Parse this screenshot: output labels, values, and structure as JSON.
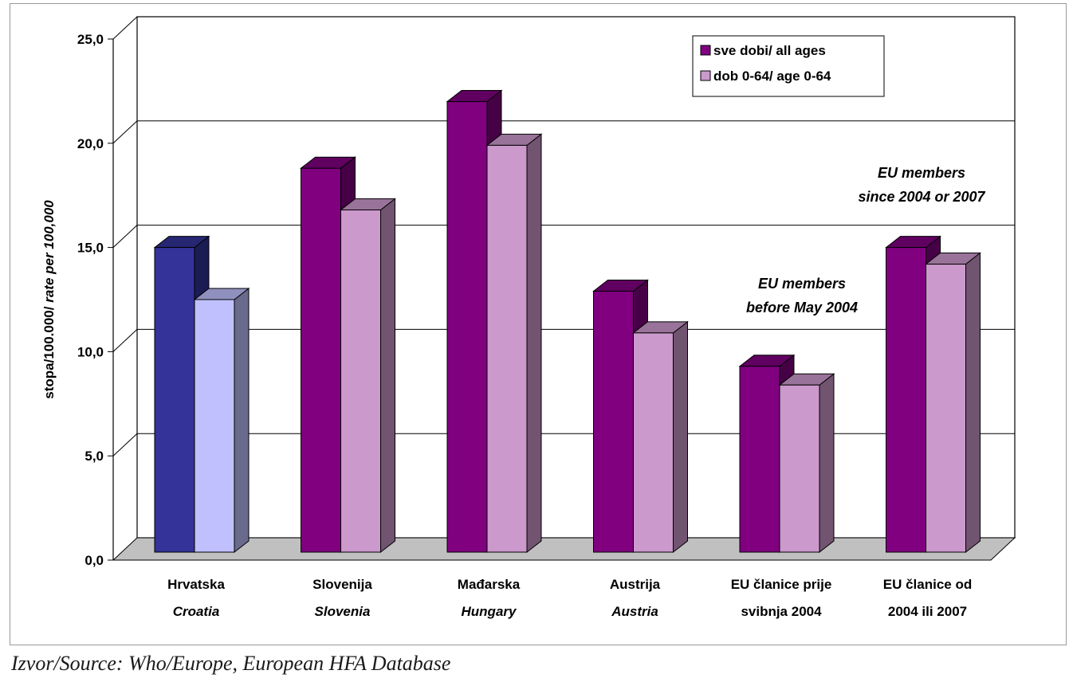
{
  "chart_data": {
    "type": "bar",
    "ylabel_main": "stopa/100.000/",
    "ylabel_italic": "rate per 100,000",
    "ylim": [
      0,
      25
    ],
    "yticks": [
      "0,0",
      "5,0",
      "10,0",
      "15,0",
      "20,0",
      "25,0"
    ],
    "grid": true,
    "legend_position": "top-right",
    "categories": [
      {
        "line1": "Hrvatska",
        "line2": "Croatia",
        "line2_italic": true
      },
      {
        "line1": "Slovenija",
        "line2": "Slovenia",
        "line2_italic": true
      },
      {
        "line1": "Mađarska",
        "line2": "Hungary",
        "line2_italic": true
      },
      {
        "line1": "Austrija",
        "line2": "Austria",
        "line2_italic": true
      },
      {
        "line1": "EU članice prije",
        "line2": "svibnja 2004",
        "line2_italic": false
      },
      {
        "line1": "EU članice od",
        "line2": "2004 ili 2007",
        "line2_italic": false
      }
    ],
    "series": [
      {
        "name": "sve dobi/ all ages",
        "values": [
          15.0,
          18.8,
          22.0,
          12.9,
          9.3,
          15.0
        ]
      },
      {
        "name": "dob 0-64/ age 0-64",
        "values": [
          12.5,
          16.8,
          19.9,
          10.9,
          8.4,
          14.2
        ]
      }
    ],
    "annotations": [
      {
        "lines": [
          "EU members",
          "since 2004 or 2007"
        ]
      },
      {
        "lines": [
          "EU members",
          "before May 2004"
        ]
      }
    ]
  },
  "colors": {
    "series1": "#800080",
    "series2": "#cc99cc",
    "croatia_series1": "#333399",
    "croatia_series2": "#c0c0ff",
    "floor": "#c0c0c0"
  },
  "source": "Izvor/Source: Who/Europe, European HFA Database"
}
